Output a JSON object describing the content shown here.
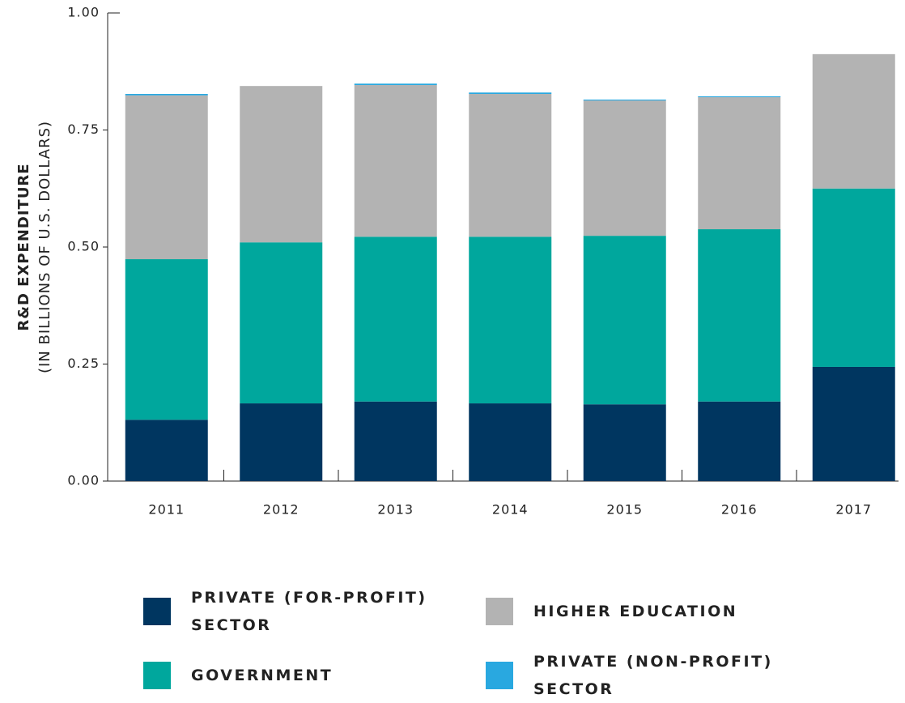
{
  "chart_data": {
    "type": "stacked_bar",
    "y_label": "R&D EXPENDITURE",
    "y_sublabel": "(IN BILLIONS OF U.S. DOLLARS)",
    "categories": [
      "2011",
      "2012",
      "2013",
      "2014",
      "2015",
      "2016",
      "2017"
    ],
    "series": [
      {
        "name": "PRIVATE (FOR-PROFIT) SECTOR",
        "color": "#003660",
        "values": [
          0.131,
          0.166,
          0.17,
          0.166,
          0.164,
          0.17,
          0.244
        ]
      },
      {
        "name": "GOVERNMENT",
        "color": "#00a79d",
        "values": [
          0.343,
          0.344,
          0.352,
          0.356,
          0.36,
          0.368,
          0.381
        ]
      },
      {
        "name": "HIGHER EDUCATION",
        "color": "#b3b3b3",
        "values": [
          0.35,
          0.334,
          0.324,
          0.305,
          0.289,
          0.282,
          0.287
        ]
      },
      {
        "name": "PRIVATE (NON-PROFIT) SECTOR",
        "color": "#29a8e0",
        "values": [
          0.003,
          0,
          0.003,
          0.003,
          0.002,
          0.002,
          0
        ]
      }
    ],
    "ylim": [
      0,
      1
    ],
    "yticks": [
      {
        "value": 0,
        "label": "0.00"
      },
      {
        "value": 0.25,
        "label": "0.25"
      },
      {
        "value": 0.5,
        "label": "0.50"
      },
      {
        "value": 0.75,
        "label": "0.75"
      },
      {
        "value": 1,
        "label": "1.00"
      }
    ]
  }
}
